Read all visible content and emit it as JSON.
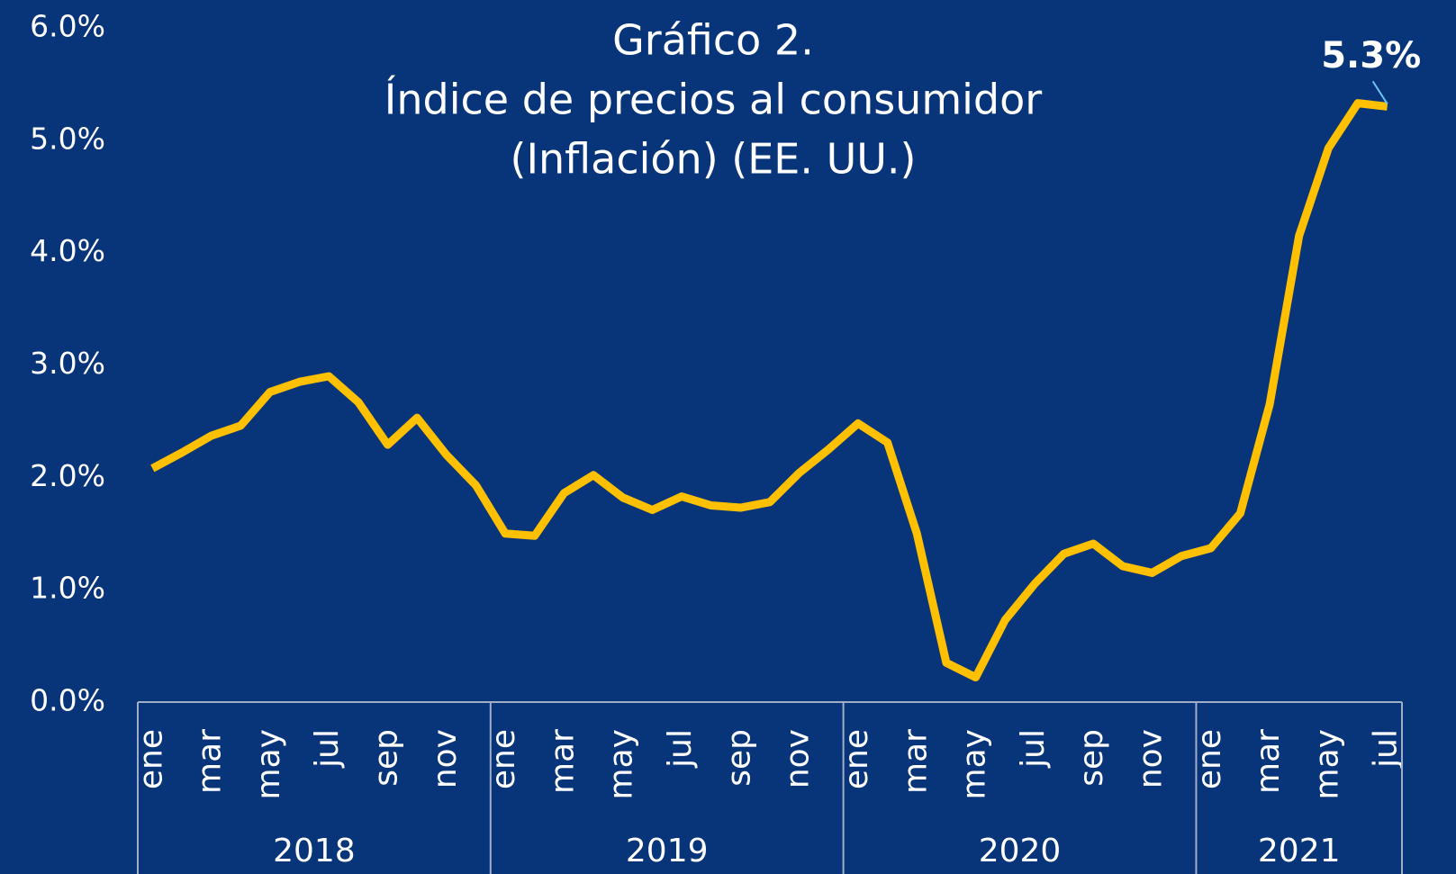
{
  "chart_data": {
    "type": "line",
    "title_lines": [
      "Gráfico 2.",
      "Índice de precios al consumidor",
      "(Inflación) (EE. UU.)"
    ],
    "categories": [
      "ene",
      null,
      "mar",
      null,
      "may",
      null,
      "jul",
      null,
      "sep",
      null,
      "nov",
      null,
      "ene",
      null,
      "mar",
      null,
      "may",
      null,
      "jul",
      null,
      "sep",
      null,
      "nov",
      null,
      "ene",
      null,
      "mar",
      null,
      "may",
      null,
      "jul",
      null,
      "sep",
      null,
      "nov",
      null,
      "ene",
      null,
      "mar",
      null,
      "may",
      null,
      "jul"
    ],
    "groups": [
      {
        "label": "2018",
        "count": 12
      },
      {
        "label": "2019",
        "count": 12
      },
      {
        "label": "2020",
        "count": 12
      },
      {
        "label": "2021",
        "count": 7
      }
    ],
    "series": [
      {
        "name": "Inflación",
        "color": "#FFC000",
        "values": [
          2.08,
          2.22,
          2.37,
          2.46,
          2.76,
          2.85,
          2.9,
          2.67,
          2.29,
          2.53,
          2.2,
          1.93,
          1.5,
          1.48,
          1.86,
          2.02,
          1.82,
          1.71,
          1.83,
          1.75,
          1.73,
          1.78,
          2.04,
          2.25,
          2.48,
          2.31,
          1.5,
          0.35,
          0.22,
          0.73,
          1.05,
          1.32,
          1.41,
          1.21,
          1.15,
          1.3,
          1.37,
          1.68,
          2.65,
          4.15,
          4.93,
          5.33,
          5.3
        ],
        "value_labels": [
          null,
          null,
          null,
          null,
          null,
          null,
          null,
          null,
          null,
          null,
          null,
          null,
          null,
          null,
          null,
          null,
          null,
          null,
          null,
          null,
          null,
          null,
          null,
          null,
          null,
          null,
          null,
          null,
          null,
          null,
          null,
          null,
          null,
          null,
          null,
          null,
          null,
          null,
          null,
          null,
          null,
          null,
          "5.3%"
        ]
      }
    ],
    "ylim": [
      0,
      6
    ],
    "yticks": [
      {
        "value": 0,
        "label": "0.0%"
      },
      {
        "value": 1,
        "label": "1.0%"
      },
      {
        "value": 2,
        "label": "2.0%"
      },
      {
        "value": 3,
        "label": "3.0%"
      },
      {
        "value": 4,
        "label": "4.0%"
      },
      {
        "value": 5,
        "label": "5.0%"
      },
      {
        "value": 6,
        "label": "6.0%"
      }
    ],
    "grid": false
  }
}
